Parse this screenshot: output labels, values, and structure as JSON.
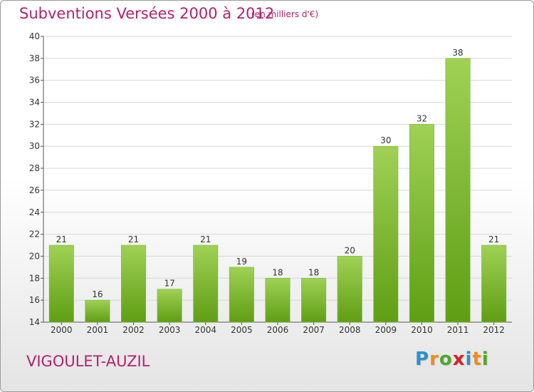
{
  "header": {
    "title": "Subventions Versées 2000 à 2012",
    "unit": "(en milliers d'€)"
  },
  "footer": {
    "commune": "VIGOULET-AUZIL",
    "logo_letters": [
      {
        "char": "P",
        "color": "#2b8fd0"
      },
      {
        "char": "r",
        "color": "#f08c1c"
      },
      {
        "char": "o",
        "color": "#4ea82a"
      },
      {
        "char": "x",
        "color": "#d6202a"
      },
      {
        "char": "i",
        "color": "#2b8fd0"
      },
      {
        "char": "t",
        "color": "#f08c1c"
      },
      {
        "char": "i",
        "color": "#4ea82a"
      }
    ]
  },
  "colors": {
    "text_accent": "#b0226e",
    "bar_top": "#9fd155",
    "bar_bottom": "#5f9e14",
    "grid": "#d8d8d8"
  },
  "chart_data": {
    "type": "bar",
    "categories": [
      "2000",
      "2001",
      "2002",
      "2003",
      "2004",
      "2005",
      "2006",
      "2007",
      "2008",
      "2009",
      "2010",
      "2011",
      "2012"
    ],
    "values": [
      21,
      16,
      21,
      17,
      21,
      19,
      18,
      18,
      20,
      30,
      32,
      38,
      21
    ],
    "title": "Subventions Versées 2000 à 2012",
    "xlabel": "",
    "ylabel": "",
    "ylim": [
      14,
      40
    ],
    "yticks": [
      14,
      16,
      18,
      20,
      22,
      24,
      26,
      28,
      30,
      32,
      34,
      36,
      38,
      40
    ],
    "grid": true,
    "data_labels": true
  }
}
